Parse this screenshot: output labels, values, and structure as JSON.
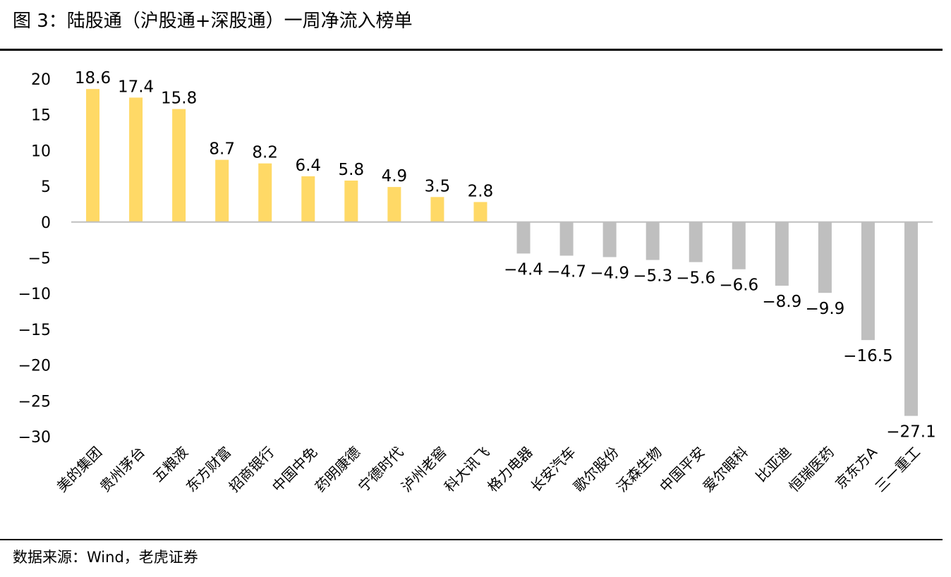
{
  "title": "图 3：陆股通（沪股通+深股通）一周净流入榜单",
  "source": "数据来源：Wind，老虎证券",
  "chart_data": {
    "type": "bar",
    "categories": [
      "美的集团",
      "贵州茅台",
      "五粮液",
      "东方财富",
      "招商银行",
      "中国中免",
      "药明康德",
      "宁德时代",
      "泸州老窖",
      "科大讯飞",
      "格力电器",
      "长安汽车",
      "歌尔股份",
      "沃森生物",
      "中国平安",
      "爱尔眼科",
      "比亚迪",
      "恒瑞医药",
      "京东方A",
      "三一重工"
    ],
    "values": [
      18.6,
      17.4,
      15.8,
      8.7,
      8.2,
      6.4,
      5.8,
      4.9,
      3.5,
      2.8,
      -4.4,
      -4.7,
      -4.9,
      -5.3,
      -5.6,
      -6.6,
      -8.9,
      -9.9,
      -16.5,
      -27.1
    ],
    "data_labels": [
      "18.6",
      "17.4",
      "15.8",
      "8.7",
      "8.2",
      "6.4",
      "5.8",
      "4.9",
      "3.5",
      "2.8",
      "−4.4",
      "−4.7",
      "−4.9",
      "−5.3",
      "−5.6",
      "−6.6",
      "−8.9",
      "−9.9",
      "−16.5",
      "−27.1"
    ],
    "yticks": [
      20,
      15,
      10,
      5,
      0,
      -5,
      -10,
      -15,
      -20,
      -25,
      -30
    ],
    "ytick_labels": [
      "20",
      "15",
      "10",
      "5",
      "0",
      "−5",
      "−10",
      "−15",
      "−20",
      "−25",
      "−30"
    ],
    "ylim": [
      -30,
      20
    ],
    "grid": false,
    "legend": "none",
    "colors": {
      "positive": "#FFD966",
      "negative": "#BFBFBF",
      "axis": "#BFBFBF"
    }
  }
}
